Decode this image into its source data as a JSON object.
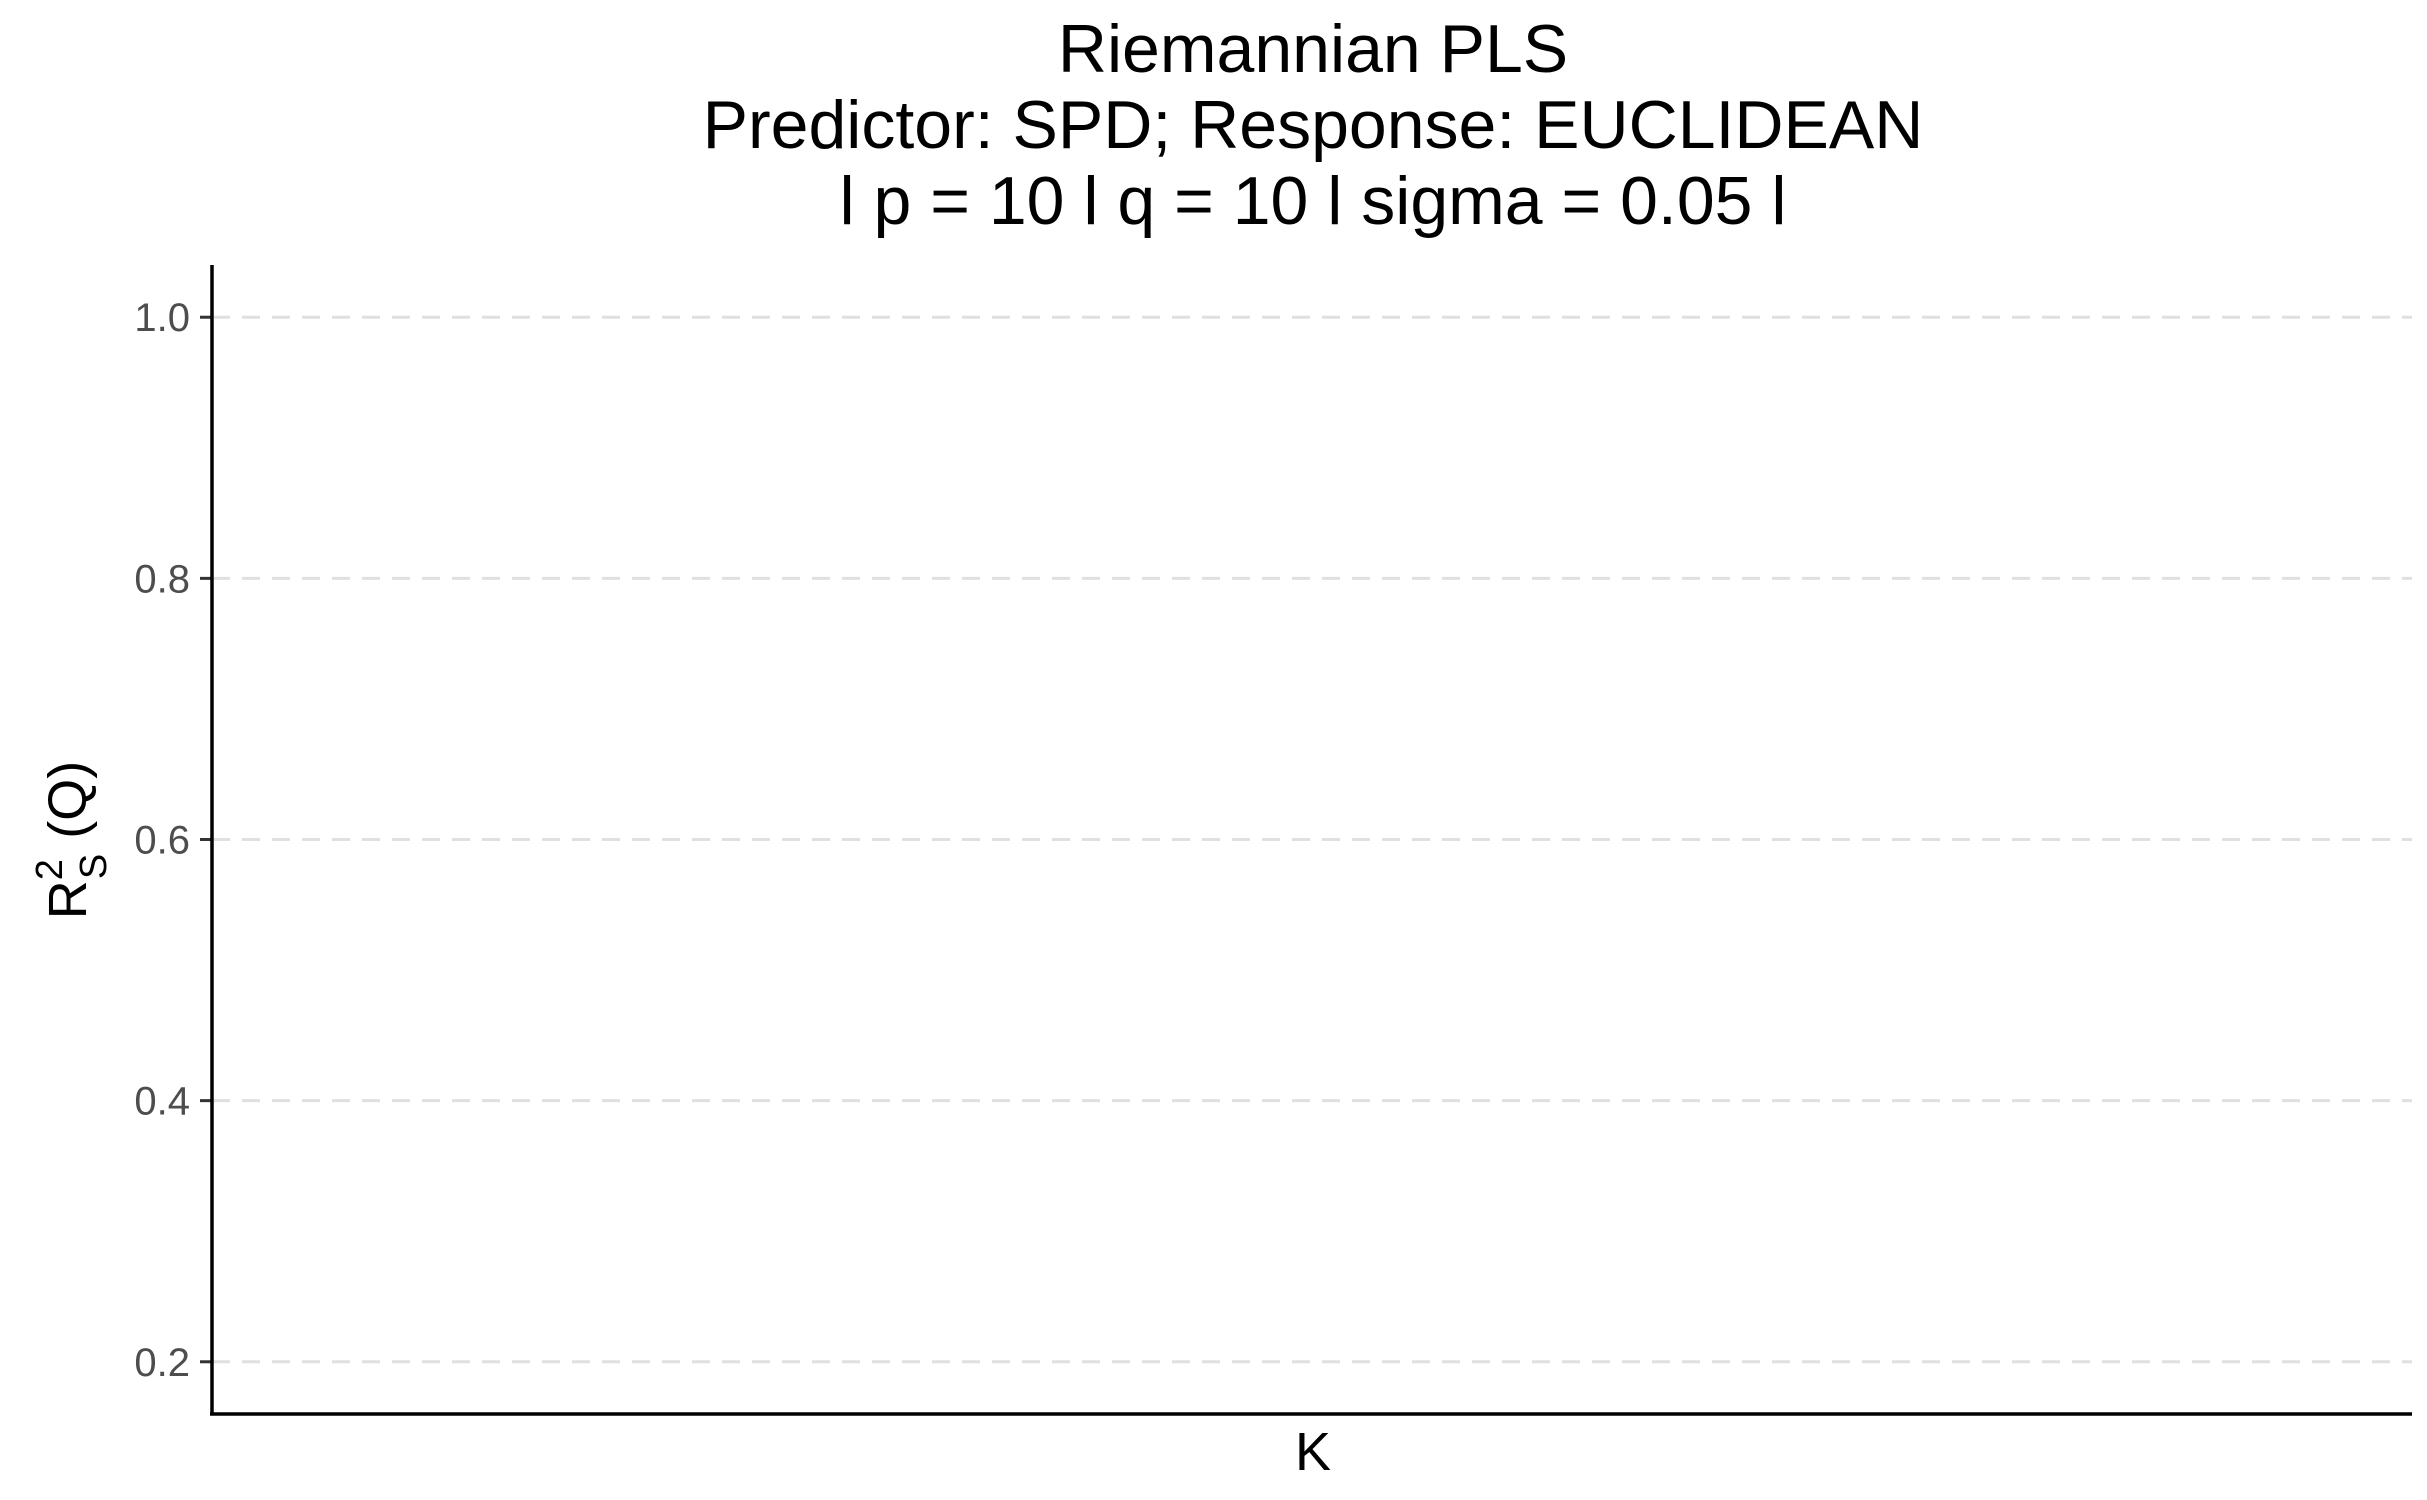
{
  "chart_data": {
    "type": "line",
    "title_lines": [
      "Riemannian PLS",
      "Predictor: SPD; Response: EUCLIDEAN",
      "l p = 10 l q = 10 l sigma = 0.05 l"
    ],
    "xlabel": "K",
    "ylabel": {
      "base": "R",
      "superscript": "2",
      "subscript": "S",
      "suffix": " (Q)"
    },
    "yticks": [
      {
        "value": 0.2,
        "label": "0.2"
      },
      {
        "value": 0.4,
        "label": "0.4"
      },
      {
        "value": 0.6,
        "label": "0.6"
      },
      {
        "value": 0.8,
        "label": "0.8"
      },
      {
        "value": 1.0,
        "label": "1.0"
      }
    ],
    "ylim": [
      0.16,
      1.04
    ],
    "grid": "horizontal-dashed",
    "series": [],
    "colors": {
      "grid": "#e0e0e0",
      "axis": "#000000",
      "tick_label": "#4d4d4d"
    }
  }
}
